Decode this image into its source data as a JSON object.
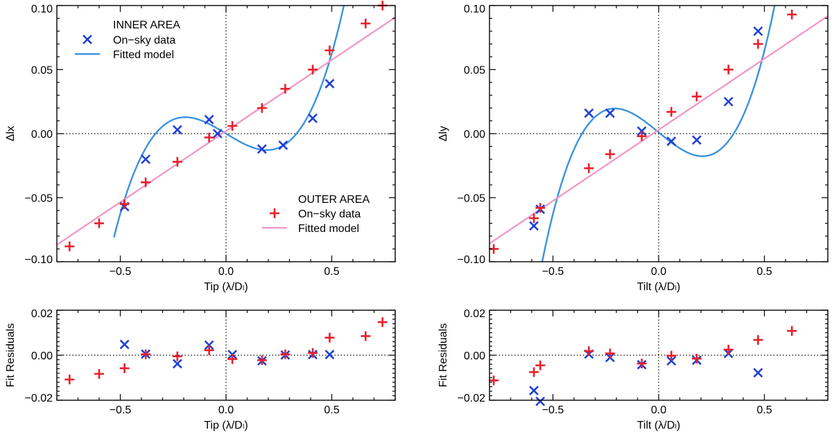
{
  "colors": {
    "inner": "#1f3fd6",
    "outer": "#e8202a",
    "inner_line": "#3a92df",
    "outer_line": "#f09ac8",
    "axis": "#000000"
  },
  "legend": {
    "inner_title": "INNER AREA",
    "outer_title": "OUTER AREA",
    "data_label": "On−sky data",
    "model_label": "Fitted model"
  },
  "chart_data": [
    {
      "id": "tip-main",
      "type": "scatter",
      "xlabel": "Tip (λ/Dₗ)",
      "ylabel": "Δlx",
      "xlim": [
        -0.8,
        0.8
      ],
      "ylim": [
        -0.1,
        0.1
      ],
      "xticks": [
        -0.5,
        0.0,
        0.5
      ],
      "xtick_labels": [
        "−0.5",
        "0.0",
        "0.5"
      ],
      "yticks": [
        -0.1,
        -0.05,
        0.0,
        0.05,
        0.1
      ],
      "ytick_labels": [
        "−0.10",
        "−0.05",
        "0.00",
        "0.05",
        "0.10"
      ],
      "series": [
        {
          "name": "Inner on-sky data",
          "marker": "x",
          "x": [
            -0.48,
            -0.38,
            -0.23,
            -0.08,
            -0.04,
            0.17,
            0.27,
            0.41,
            0.49
          ],
          "y": [
            -0.057,
            -0.02,
            0.003,
            0.011,
            0.0,
            -0.012,
            -0.009,
            0.012,
            0.039
          ]
        },
        {
          "name": "Outer on-sky data",
          "marker": "+",
          "x": [
            -0.74,
            -0.6,
            -0.48,
            -0.38,
            -0.23,
            -0.08,
            0.03,
            0.17,
            0.28,
            0.41,
            0.49,
            0.66,
            0.74
          ],
          "y": [
            -0.088,
            -0.07,
            -0.055,
            -0.038,
            -0.022,
            -0.003,
            0.006,
            0.02,
            0.035,
            0.05,
            0.065,
            0.086,
            0.1
          ]
        }
      ],
      "models": [
        {
          "name": "Inner fitted model",
          "kind": "cubic",
          "coef": [
            0.9,
            -0.1,
            0.0
          ],
          "xrange": [
            -0.53,
            0.58
          ]
        },
        {
          "name": "Outer fitted model",
          "kind": "linear",
          "coef": [
            0.111,
            0.002
          ],
          "xrange": [
            -0.8,
            0.8
          ]
        }
      ]
    },
    {
      "id": "tilt-main",
      "type": "scatter",
      "xlabel": "Tilt (λ/Dₗ)",
      "ylabel": "Δly",
      "xlim": [
        -0.8,
        0.8
      ],
      "ylim": [
        -0.1,
        0.1
      ],
      "xticks": [
        -0.5,
        0.0,
        0.5
      ],
      "xtick_labels": [
        "−0.5",
        "0.0",
        "0.5"
      ],
      "yticks": [
        -0.1,
        -0.05,
        0.0,
        0.05,
        0.1
      ],
      "ytick_labels": [
        "−0.10",
        "−0.05",
        "0.00",
        "0.05",
        "0.10"
      ],
      "series": [
        {
          "name": "Inner on-sky data",
          "marker": "x",
          "x": [
            -0.59,
            -0.56,
            -0.33,
            -0.23,
            -0.08,
            0.06,
            0.18,
            0.33,
            0.47
          ],
          "y": [
            -0.072,
            -0.059,
            0.016,
            0.016,
            0.002,
            -0.006,
            -0.005,
            0.025,
            0.08
          ]
        },
        {
          "name": "Outer on-sky data",
          "marker": "+",
          "x": [
            -0.78,
            -0.59,
            -0.56,
            -0.33,
            -0.23,
            -0.08,
            0.06,
            0.18,
            0.33,
            0.47,
            0.63
          ],
          "y": [
            -0.09,
            -0.066,
            -0.058,
            -0.027,
            -0.016,
            -0.002,
            0.017,
            0.029,
            0.05,
            0.07,
            0.093
          ]
        }
      ],
      "models": [
        {
          "name": "Inner fitted model",
          "kind": "cubic",
          "coef": [
            1.05,
            -0.135,
            0.001
          ],
          "xrange": [
            -0.65,
            0.58
          ]
        },
        {
          "name": "Outer fitted model",
          "kind": "linear",
          "coef": [
            0.111,
            0.003
          ],
          "xrange": [
            -0.8,
            0.8
          ]
        }
      ]
    },
    {
      "id": "tip-residuals",
      "type": "scatter",
      "xlabel": "Tip (λ/Dₗ)",
      "ylabel": "Fit Residuals",
      "xlim": [
        -0.8,
        0.8
      ],
      "ylim": [
        -0.02,
        0.02
      ],
      "xticks": [
        -0.5,
        0.0,
        0.5
      ],
      "xtick_labels": [
        "−0.5",
        "0.0",
        "0.5"
      ],
      "yticks": [
        -0.02,
        0.0,
        0.02
      ],
      "ytick_labels": [
        "−0.02",
        "0.00",
        "0.02"
      ],
      "series": [
        {
          "name": "Inner residuals",
          "marker": "x",
          "x": [
            -0.48,
            -0.38,
            -0.23,
            -0.08,
            0.03,
            0.17,
            0.28,
            0.41,
            0.49
          ],
          "y": [
            0.0048,
            0.0005,
            -0.0038,
            0.0045,
            0.0003,
            -0.0025,
            0.0001,
            0.0003,
            0.0003
          ]
        },
        {
          "name": "Outer residuals",
          "marker": "+",
          "x": [
            -0.74,
            -0.6,
            -0.48,
            -0.38,
            -0.23,
            -0.08,
            0.03,
            0.17,
            0.28,
            0.41,
            0.49,
            0.66,
            0.74
          ],
          "y": [
            -0.0108,
            -0.0083,
            -0.0058,
            0.0004,
            -0.0005,
            0.0022,
            -0.0017,
            -0.0022,
            0.0004,
            0.001,
            0.0078,
            0.0085,
            0.0147
          ]
        }
      ]
    },
    {
      "id": "tilt-residuals",
      "type": "scatter",
      "xlabel": "Tilt (λ/Dₗ)",
      "ylabel": "Fit Residuals",
      "xlim": [
        -0.8,
        0.8
      ],
      "ylim": [
        -0.02,
        0.02
      ],
      "xticks": [
        -0.5,
        0.0,
        0.5
      ],
      "xtick_labels": [
        "−0.5",
        "0.0",
        "0.5"
      ],
      "yticks": [
        -0.02,
        0.0,
        0.02
      ],
      "ytick_labels": [
        "−0.02",
        "0.00",
        "0.02"
      ],
      "series": [
        {
          "name": "Inner residuals",
          "marker": "x",
          "x": [
            -0.59,
            -0.56,
            -0.33,
            -0.23,
            -0.08,
            0.06,
            0.18,
            0.33,
            0.47
          ],
          "y": [
            -0.0157,
            -0.0205,
            0.0005,
            -0.001,
            -0.0042,
            -0.0025,
            -0.0022,
            0.0008,
            -0.0078
          ]
        },
        {
          "name": "Outer residuals",
          "marker": "+",
          "x": [
            -0.78,
            -0.59,
            -0.56,
            -0.33,
            -0.23,
            -0.08,
            0.06,
            0.18,
            0.33,
            0.47,
            0.63
          ],
          "y": [
            -0.0112,
            -0.0075,
            -0.0045,
            0.0018,
            0.0008,
            -0.0037,
            -0.0002,
            -0.0015,
            0.0025,
            0.0068,
            0.0108
          ]
        }
      ]
    }
  ]
}
